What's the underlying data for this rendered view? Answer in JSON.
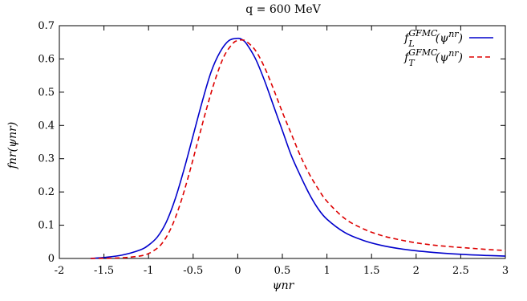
{
  "chart_data": {
    "type": "line",
    "title": "q = 600 MeV",
    "xlabel": "ψnr",
    "ylabel": "fnr(ψnr)",
    "xlim": [
      -2,
      3
    ],
    "ylim": [
      0,
      0.7
    ],
    "xticks": [
      -2,
      -1.5,
      -1,
      -0.5,
      0,
      0.5,
      1,
      1.5,
      2,
      2.5,
      3
    ],
    "yticks": [
      0,
      0.1,
      0.2,
      0.3,
      0.4,
      0.5,
      0.6,
      0.7
    ],
    "xtick_labels": [
      "-2",
      "-1.5",
      "-1",
      "-0.5",
      "0",
      "0.5",
      "1",
      "1.5",
      "2",
      "2.5",
      "3"
    ],
    "ytick_labels": [
      "0",
      "0.1",
      "0.2",
      "0.3",
      "0.4",
      "0.5",
      "0.6",
      "0.7"
    ],
    "grid": false,
    "legend_position": "top-right",
    "series": [
      {
        "name": "fLGFMC(ψnr)",
        "color": "#0000cc",
        "style": "solid",
        "x": [
          -1.65,
          -1.5,
          -1.3,
          -1.1,
          -1.0,
          -0.9,
          -0.8,
          -0.7,
          -0.6,
          -0.5,
          -0.4,
          -0.3,
          -0.2,
          -0.1,
          0.0,
          0.05,
          0.1,
          0.2,
          0.3,
          0.4,
          0.5,
          0.6,
          0.7,
          0.8,
          0.9,
          1.0,
          1.2,
          1.4,
          1.6,
          1.8,
          2.0,
          2.2,
          2.4,
          2.6,
          2.8,
          3.0
        ],
        "y": [
          0.0,
          0.003,
          0.01,
          0.025,
          0.04,
          0.065,
          0.11,
          0.18,
          0.27,
          0.37,
          0.47,
          0.56,
          0.62,
          0.655,
          0.662,
          0.658,
          0.645,
          0.6,
          0.535,
          0.46,
          0.385,
          0.31,
          0.25,
          0.195,
          0.15,
          0.118,
          0.078,
          0.055,
          0.04,
          0.03,
          0.023,
          0.018,
          0.014,
          0.011,
          0.009,
          0.007
        ]
      },
      {
        "name": "fTGFMC(ψnr)",
        "color": "#dd0000",
        "style": "dashed",
        "x": [
          -1.65,
          -1.4,
          -1.2,
          -1.05,
          -0.95,
          -0.85,
          -0.75,
          -0.65,
          -0.55,
          -0.45,
          -0.35,
          -0.25,
          -0.15,
          -0.05,
          0.0,
          0.05,
          0.1,
          0.2,
          0.3,
          0.4,
          0.5,
          0.6,
          0.7,
          0.8,
          0.9,
          1.0,
          1.2,
          1.4,
          1.6,
          1.8,
          2.0,
          2.2,
          2.4,
          2.6,
          2.8,
          3.0
        ],
        "y": [
          0.0,
          0.001,
          0.004,
          0.01,
          0.022,
          0.045,
          0.09,
          0.16,
          0.25,
          0.35,
          0.45,
          0.54,
          0.61,
          0.648,
          0.655,
          0.657,
          0.652,
          0.625,
          0.575,
          0.51,
          0.44,
          0.375,
          0.31,
          0.255,
          0.21,
          0.172,
          0.12,
          0.09,
          0.07,
          0.057,
          0.047,
          0.04,
          0.035,
          0.031,
          0.027,
          0.024
        ]
      }
    ]
  }
}
